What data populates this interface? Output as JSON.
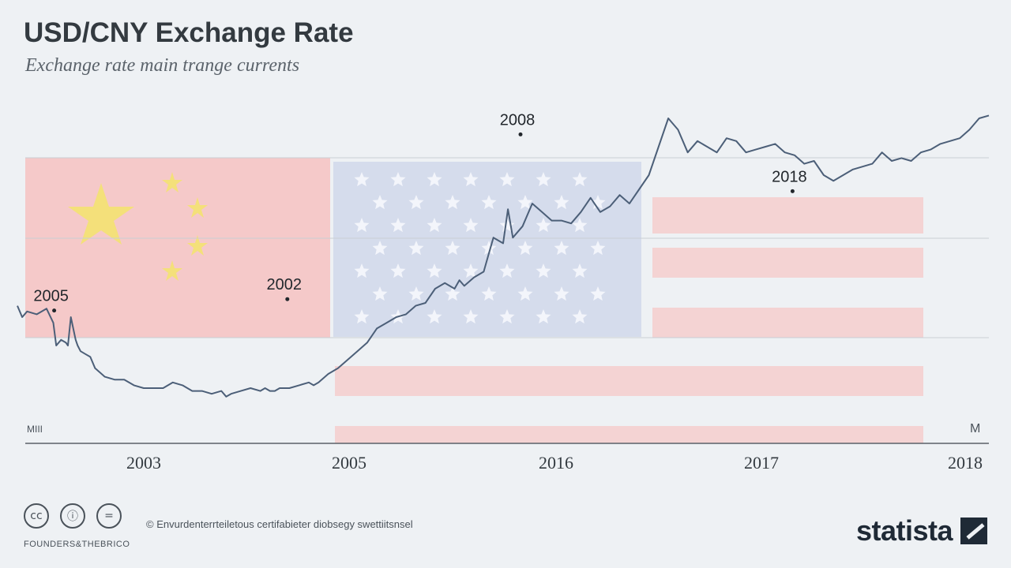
{
  "title": "USD/CNY Exchange Rate",
  "subtitle": "Exchange rate ma​in trange currents",
  "colors": {
    "line": "#4c5f78",
    "cn_red": "#f5c9c9",
    "cn_star": "#f4e07a",
    "us_blue": "#d5dcec",
    "us_stripe": "#f4d3d3",
    "text": "#333a40"
  },
  "chart_data": {
    "type": "line",
    "title": "USD/CNY Exchange Rate",
    "subtitle": "Exchange rate ma​in trange currents",
    "x_ticks": [
      "2003",
      "2005",
      "2016",
      "2017",
      "2018"
    ],
    "ylim": [
      0,
      100
    ],
    "annotations": [
      {
        "label": "2005",
        "x": 0.02,
        "y": 34
      },
      {
        "label": "2002",
        "x": 0.26,
        "y": 38
      },
      {
        "label": "2008",
        "x": 0.5,
        "y": 96
      },
      {
        "label": "2018",
        "x": 0.78,
        "y": 76
      }
    ],
    "series": [
      {
        "x": [
          0,
          0.005,
          0.01,
          0.02,
          0.03,
          0.037,
          0.04,
          0.045,
          0.05,
          0.052,
          0.055,
          0.06,
          0.062,
          0.065,
          0.07,
          0.075,
          0.08,
          0.09,
          0.1,
          0.11,
          0.12,
          0.13,
          0.14,
          0.15,
          0.16,
          0.17,
          0.18,
          0.19,
          0.2,
          0.21,
          0.215,
          0.22,
          0.23,
          0.24,
          0.25,
          0.255,
          0.26,
          0.265,
          0.27,
          0.28,
          0.29,
          0.3,
          0.305,
          0.31,
          0.32,
          0.33,
          0.34,
          0.35,
          0.36,
          0.37,
          0.38,
          0.39,
          0.4,
          0.41,
          0.42,
          0.43,
          0.44,
          0.45,
          0.455,
          0.46,
          0.47,
          0.48,
          0.485,
          0.49,
          0.5,
          0.505,
          0.51,
          0.52,
          0.53,
          0.54,
          0.55,
          0.56,
          0.57,
          0.58,
          0.59,
          0.6,
          0.61,
          0.62,
          0.63,
          0.64,
          0.65,
          0.66,
          0.67,
          0.68,
          0.69,
          0.7,
          0.71,
          0.72,
          0.73,
          0.74,
          0.75,
          0.76,
          0.77,
          0.78,
          0.79,
          0.8,
          0.81,
          0.82,
          0.83,
          0.84,
          0.85,
          0.86,
          0.87,
          0.88,
          0.89,
          0.9,
          0.91,
          0.92,
          0.93,
          0.94,
          0.95,
          0.96,
          0.97,
          0.98,
          0.99,
          1
        ],
        "y": [
          34,
          30,
          32,
          31,
          33,
          28,
          20,
          22,
          21,
          20,
          30,
          22,
          20,
          18,
          17,
          16,
          12,
          9,
          8,
          8,
          6,
          5,
          5,
          5,
          7,
          6,
          4,
          4,
          3,
          4,
          2,
          3,
          4,
          5,
          4,
          5,
          4,
          4,
          5,
          5,
          6,
          7,
          6,
          7,
          10,
          12,
          15,
          18,
          21,
          26,
          28,
          30,
          31,
          34,
          35,
          40,
          42,
          40,
          43,
          41,
          44,
          46,
          52,
          58,
          56,
          68,
          58,
          62,
          70,
          67,
          64,
          64,
          63,
          67,
          72,
          67,
          69,
          73,
          70,
          75,
          80,
          90,
          100,
          96,
          88,
          92,
          90,
          88,
          93,
          92,
          88,
          89,
          90,
          91,
          88,
          87,
          84,
          85,
          80,
          78,
          80,
          82,
          83,
          84,
          88,
          85,
          86,
          85,
          88,
          89,
          91,
          92,
          93,
          96,
          100,
          101
        ]
      }
    ]
  },
  "axis_left_label": "MIII",
  "axis_right_label": "M",
  "footer": {
    "icons": [
      "cc-icon",
      "person-icon",
      "equals-icon"
    ],
    "license_label": "FOUNDERS&THEBRICO",
    "source": "© Envurdenterrteiletous certifabieter diobsegy swettiitsnsel",
    "brand": "statista"
  }
}
